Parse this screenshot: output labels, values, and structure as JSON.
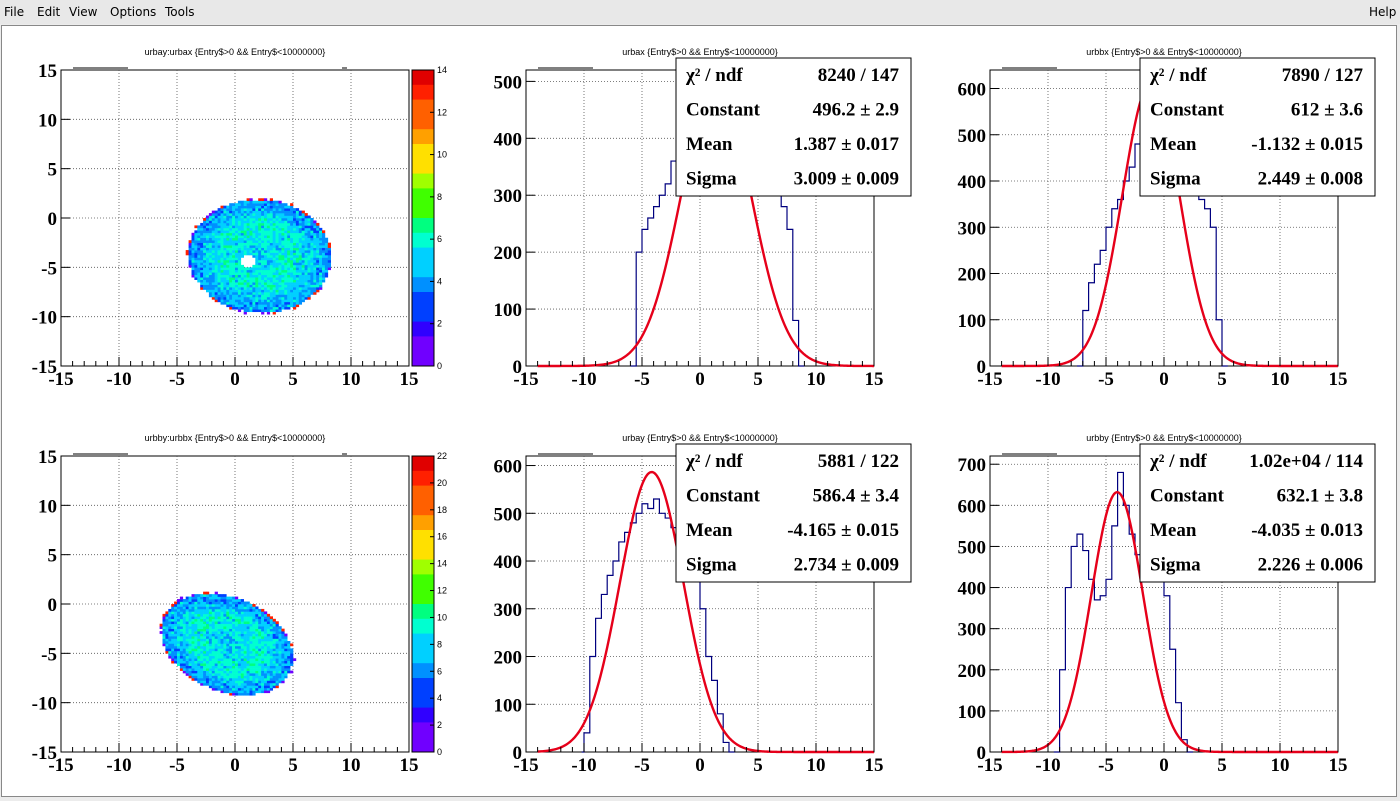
{
  "menubar": {
    "items": [
      {
        "id": "file",
        "label": "File"
      },
      {
        "id": "edit",
        "label": "Edit"
      },
      {
        "id": "view",
        "label": "View"
      },
      {
        "id": "options",
        "label": "Options"
      },
      {
        "id": "tools",
        "label": "Tools"
      }
    ],
    "help": {
      "id": "help",
      "label": "Help"
    }
  },
  "colors": {
    "hist_line": "#00007f",
    "fit_line": "#e6001a",
    "grid": "#555555",
    "palette": [
      "#7000ff",
      "#3000ff",
      "#0040ff",
      "#0090ff",
      "#00d0ff",
      "#00ffd0",
      "#00ff80",
      "#40ff00",
      "#a0ff00",
      "#ffe000",
      "#ffa000",
      "#ff6000",
      "#ff2000",
      "#e00000"
    ]
  },
  "chart_data": [
    {
      "type": "heatmap",
      "title": "urbay:urbax {Entry$>0 && Entry$<10000000}",
      "xlim": [
        -15,
        15
      ],
      "ylim": [
        -15,
        15
      ],
      "xticks": [
        "-15",
        "-10",
        "-5",
        "0",
        "5",
        "10",
        "15"
      ],
      "yticks": [
        "15",
        "10",
        "5",
        "0",
        "-5",
        "-10",
        "-15"
      ],
      "palette_ticks": [
        "14",
        "12",
        "10",
        "8",
        "6",
        "4",
        "2",
        "0"
      ],
      "zlim": [
        0,
        14
      ],
      "blob": {
        "cx": 2,
        "cy": -4,
        "rx": 6.2,
        "ry": 5.8,
        "rot": -10,
        "hole": [
          1,
          -4.5
        ]
      },
      "grid": true
    },
    {
      "type": "line",
      "title": "urbax {Entry$>0 && Entry$<10000000}",
      "xlim": [
        -15,
        15
      ],
      "ylim": [
        0,
        520
      ],
      "xticks": [
        "-15",
        "-10",
        "-5",
        "0",
        "5",
        "10",
        "15"
      ],
      "yticks": [
        "500",
        "400",
        "300",
        "200",
        "100",
        "0"
      ],
      "stats": [
        {
          "label": "χ² / ndf",
          "value": "8240 / 147"
        },
        {
          "label": "Constant",
          "value": "496.2 ± 2.9"
        },
        {
          "label": "Mean",
          "value": "1.387 ± 0.017"
        },
        {
          "label": "Sigma",
          "value": "3.009 ± 0.009"
        }
      ],
      "fit": {
        "constant": 496.2,
        "mean": 1.387,
        "sigma": 3.009
      },
      "hist": {
        "x": [
          -6,
          -5.5,
          -5,
          -4.5,
          -4,
          -3.5,
          -3,
          -2.5,
          -2,
          -1.5,
          -1,
          -0.5,
          0,
          5,
          5.5,
          6,
          6.5,
          7,
          7.5,
          8,
          8.5
        ],
        "y": [
          0,
          200,
          240,
          260,
          280,
          300,
          320,
          360,
          380,
          395,
          400,
          410,
          400,
          460,
          400,
          330,
          300,
          280,
          240,
          80,
          0
        ]
      },
      "grid": true
    },
    {
      "type": "line",
      "title": "urbbx {Entry$>0 && Entry$<10000000}",
      "xlim": [
        -15,
        15
      ],
      "ylim": [
        0,
        640
      ],
      "xticks": [
        "-15",
        "-10",
        "-5",
        "0",
        "5",
        "10",
        "15"
      ],
      "yticks": [
        "600",
        "500",
        "400",
        "300",
        "200",
        "100",
        "0"
      ],
      "stats": [
        {
          "label": "χ² / ndf",
          "value": "7890 / 127"
        },
        {
          "label": "Constant",
          "value": "612 ± 3.6"
        },
        {
          "label": "Mean",
          "value": "-1.132 ± 0.015"
        },
        {
          "label": "Sigma",
          "value": "2.449 ± 0.008"
        }
      ],
      "fit": {
        "constant": 612,
        "mean": -1.132,
        "sigma": 2.449
      },
      "hist": {
        "x": [
          -7.5,
          -7,
          -6.5,
          -6,
          -5.5,
          -5,
          -4.5,
          -4,
          -3.5,
          -3,
          -2.5,
          2,
          2.5,
          3,
          3.5,
          4,
          4.5,
          5
        ],
        "y": [
          0,
          120,
          180,
          220,
          250,
          300,
          340,
          360,
          400,
          430,
          480,
          380,
          370,
          360,
          340,
          300,
          100,
          0
        ]
      },
      "grid": true
    },
    {
      "type": "heatmap",
      "title": "urbby:urbbx {Entry$>0 && Entry$<10000000}",
      "xlim": [
        -15,
        15
      ],
      "ylim": [
        -15,
        15
      ],
      "xticks": [
        "-15",
        "-10",
        "-5",
        "0",
        "5",
        "10",
        "15"
      ],
      "yticks": [
        "15",
        "10",
        "5",
        "0",
        "-5",
        "-10",
        "-15"
      ],
      "palette_ticks": [
        "22",
        "20",
        "18",
        "16",
        "14",
        "12",
        "10",
        "8",
        "6",
        "4",
        "2",
        "0"
      ],
      "zlim": [
        0,
        22
      ],
      "blob": {
        "cx": -0.8,
        "cy": -4.2,
        "rx": 6.2,
        "ry": 4.6,
        "rot": -35,
        "hole": null
      },
      "grid": true
    },
    {
      "type": "line",
      "title": "urbay {Entry$>0 && Entry$<10000000}",
      "xlim": [
        -15,
        15
      ],
      "ylim": [
        0,
        620
      ],
      "xticks": [
        "-15",
        "-10",
        "-5",
        "0",
        "5",
        "10",
        "15"
      ],
      "yticks": [
        "600",
        "500",
        "400",
        "300",
        "200",
        "100",
        "0"
      ],
      "stats": [
        {
          "label": "χ² / ndf",
          "value": "5881 / 122"
        },
        {
          "label": "Constant",
          "value": "586.4 ± 3.4"
        },
        {
          "label": "Mean",
          "value": "-4.165 ± 0.015"
        },
        {
          "label": "Sigma",
          "value": "2.734 ± 0.009"
        }
      ],
      "fit": {
        "constant": 586.4,
        "mean": -4.165,
        "sigma": 2.734
      },
      "hist": {
        "x": [
          -10.2,
          -10,
          -9.5,
          -9,
          -8.5,
          -8,
          -7.5,
          -7,
          -6.5,
          -6,
          -5.5,
          -5,
          -4.5,
          -4,
          -3.5,
          -3,
          -2.5,
          -2,
          -1.5,
          -1,
          -0.5,
          0,
          0.5,
          1,
          1.5,
          2,
          2.5
        ],
        "y": [
          0,
          40,
          200,
          280,
          330,
          370,
          400,
          440,
          460,
          480,
          500,
          520,
          510,
          530,
          500,
          490,
          470,
          450,
          430,
          390,
          360,
          300,
          200,
          150,
          80,
          20,
          0
        ]
      },
      "grid": true
    },
    {
      "type": "line",
      "title": "urbby {Entry$>0 && Entry$<10000000}",
      "xlim": [
        -15,
        15
      ],
      "ylim": [
        0,
        720
      ],
      "xticks": [
        "-15",
        "-10",
        "-5",
        "0",
        "5",
        "10",
        "15"
      ],
      "yticks": [
        "700",
        "600",
        "500",
        "400",
        "300",
        "200",
        "100",
        "0"
      ],
      "stats": [
        {
          "label": "χ² / ndf",
          "value": "1.02e+04 / 114"
        },
        {
          "label": "Constant",
          "value": "632.1 ± 3.8"
        },
        {
          "label": "Mean",
          "value": "-4.035 ± 0.013"
        },
        {
          "label": "Sigma",
          "value": "2.226 ± 0.006"
        }
      ],
      "fit": {
        "constant": 632.1,
        "mean": -4.035,
        "sigma": 2.226
      },
      "hist": {
        "x": [
          -9.5,
          -9,
          -8.5,
          -8,
          -7.5,
          -7,
          -6.5,
          -6,
          -5.5,
          -5,
          -4.5,
          -4,
          -3.5,
          -3,
          -2.5,
          -2,
          -1.5,
          -1,
          -0.5,
          0,
          0.5,
          1,
          1.5,
          2
        ],
        "y": [
          0,
          200,
          400,
          500,
          530,
          490,
          420,
          370,
          380,
          420,
          550,
          680,
          600,
          530,
          480,
          450,
          470,
          500,
          470,
          380,
          250,
          120,
          30,
          0
        ]
      },
      "grid": true
    }
  ]
}
